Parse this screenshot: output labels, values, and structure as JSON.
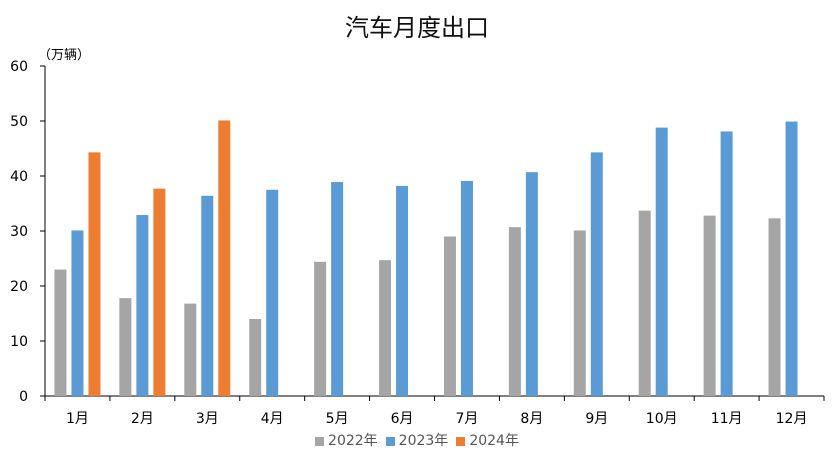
{
  "chart_data": {
    "type": "bar",
    "title": "汽车月度出口",
    "ylabel": "（万辆）",
    "xlabel": "",
    "ylim": [
      0,
      60
    ],
    "yticks": [
      0,
      10,
      20,
      30,
      40,
      50,
      60
    ],
    "grid": false,
    "legend_position": "bottom",
    "categories": [
      "1月",
      "2月",
      "3月",
      "4月",
      "5月",
      "6月",
      "7月",
      "8月",
      "9月",
      "10月",
      "11月",
      "12月"
    ],
    "series": [
      {
        "name": "2022年",
        "color": "#A5A5A5",
        "values": [
          23.0,
          17.8,
          16.8,
          14.0,
          24.4,
          24.7,
          29.0,
          30.7,
          30.1,
          33.7,
          32.8,
          32.3
        ]
      },
      {
        "name": "2023年",
        "color": "#5B9BD5",
        "values": [
          30.1,
          32.9,
          36.4,
          37.5,
          38.9,
          38.2,
          39.1,
          40.7,
          44.3,
          48.8,
          48.1,
          49.9
        ]
      },
      {
        "name": "2024年",
        "color": "#ED7D31",
        "values": [
          44.3,
          37.7,
          50.1,
          null,
          null,
          null,
          null,
          null,
          null,
          null,
          null,
          null
        ]
      }
    ]
  }
}
